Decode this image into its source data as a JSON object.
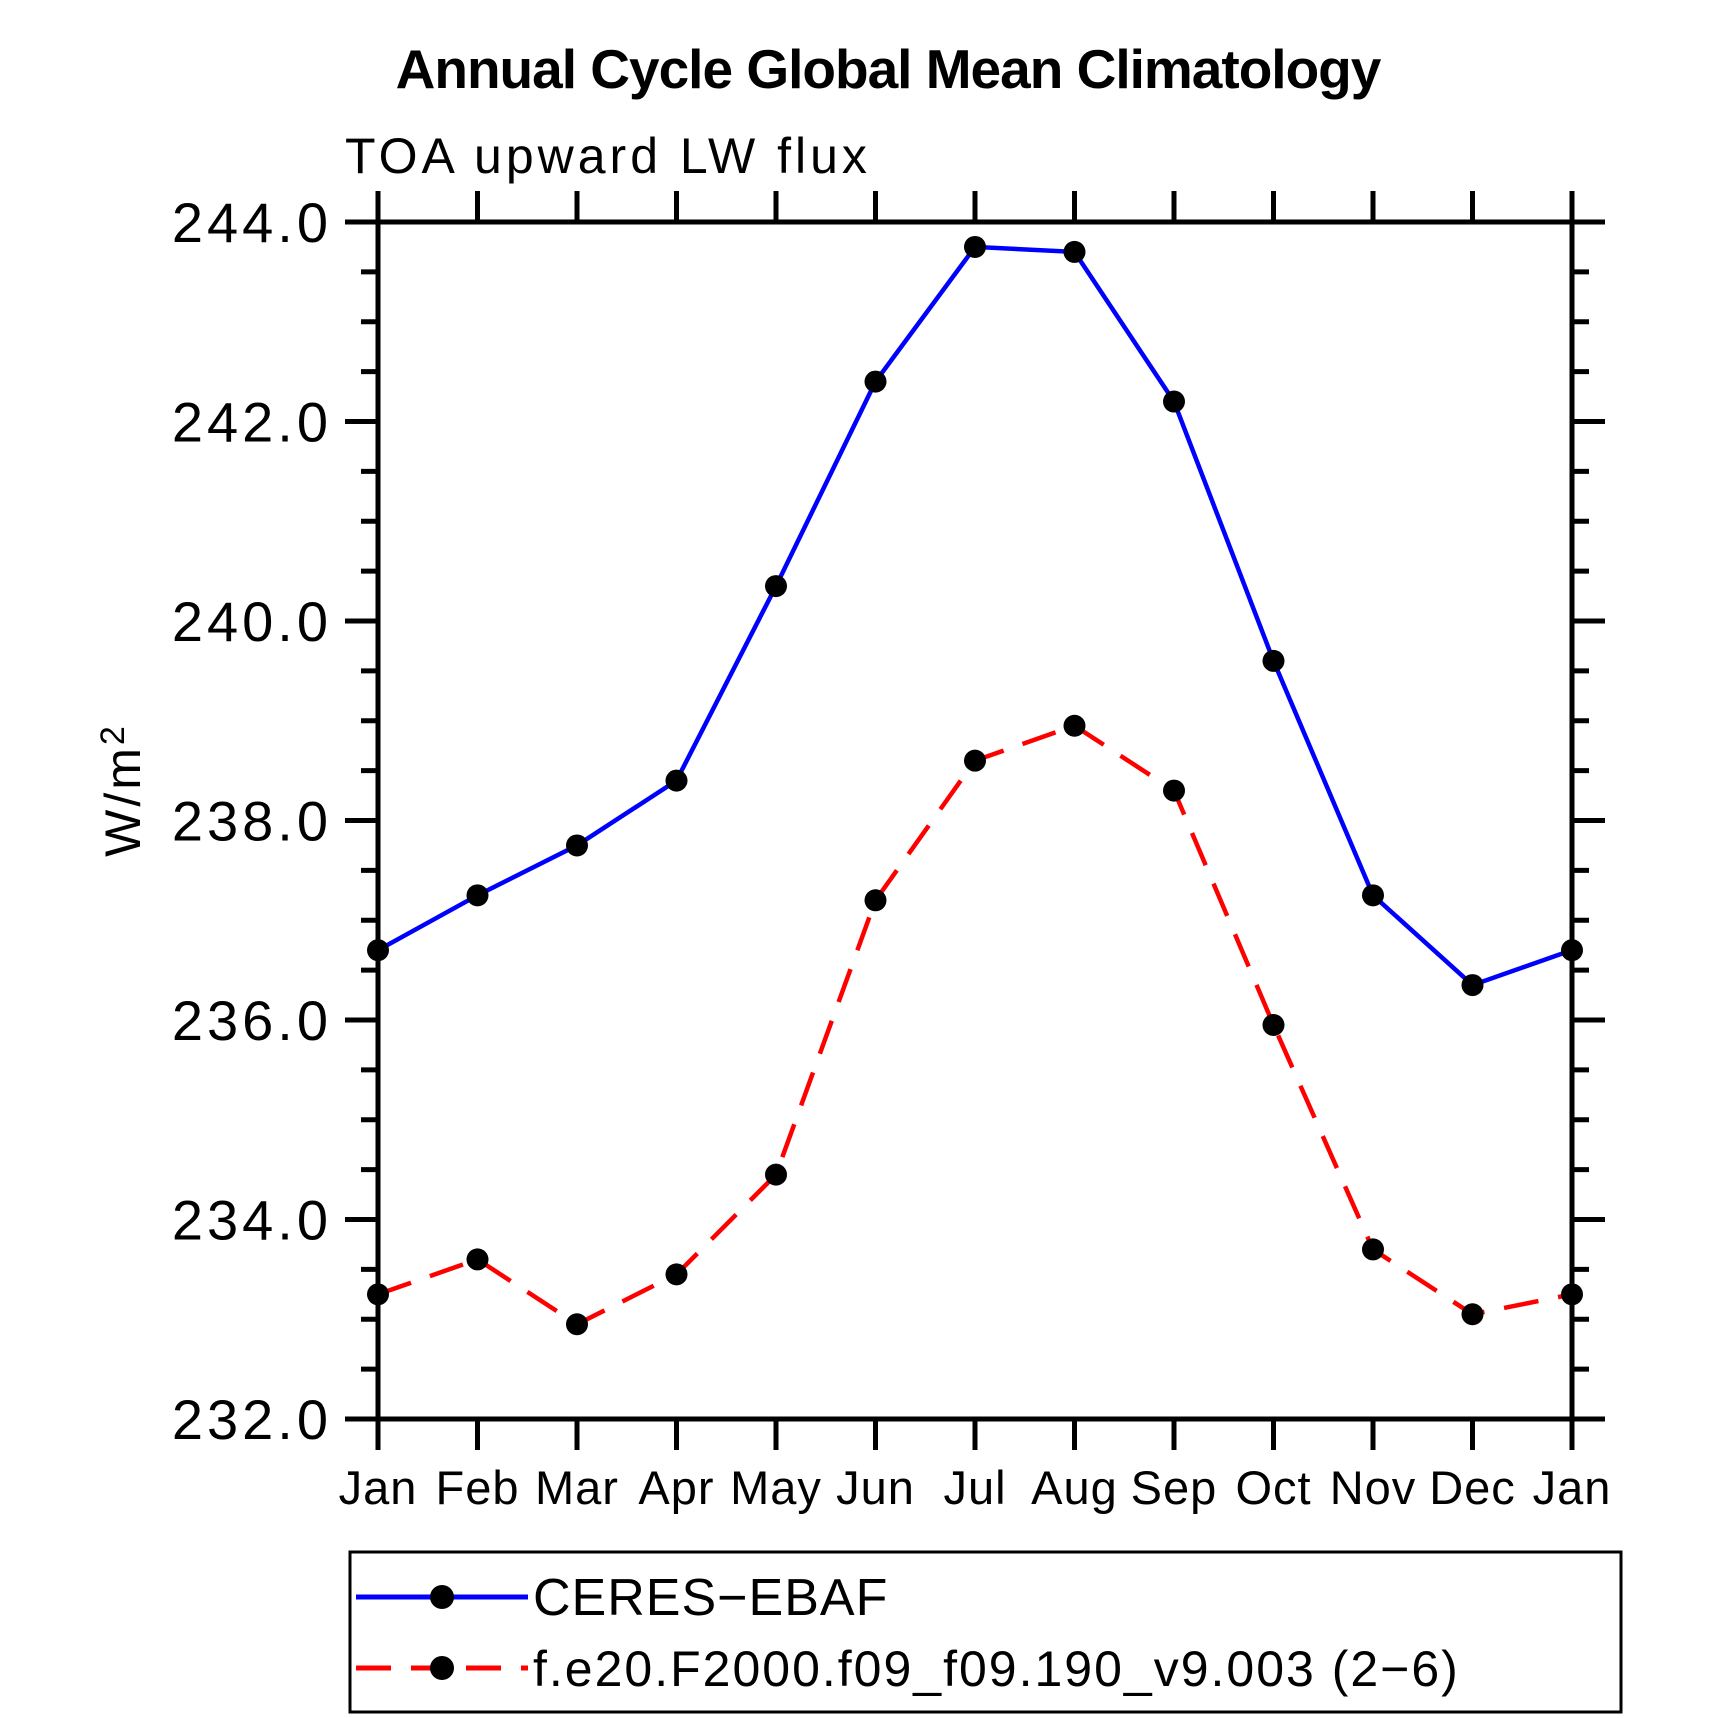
{
  "page": {
    "background": "#ffffff"
  },
  "chart_data": {
    "type": "line",
    "title": "Annual Cycle Global Mean Climatology",
    "subtitle": "TOA upward LW flux",
    "ylabel_base": "W/m",
    "ylabel_exp": "2",
    "categories": [
      "Jan",
      "Feb",
      "Mar",
      "Apr",
      "May",
      "Jun",
      "Jul",
      "Aug",
      "Sep",
      "Oct",
      "Nov",
      "Dec",
      "Jan"
    ],
    "y_axis": {
      "min": 232.0,
      "max": 244.0,
      "major_step": 2.0,
      "minor_step": 0.5,
      "major_tick_labels": [
        "244.0",
        "242.0",
        "240.0",
        "238.0",
        "236.0",
        "234.0",
        "232.0"
      ]
    },
    "grid": false,
    "legend_position": "bottom",
    "marker_color": "#000000",
    "axis_color": "#000000",
    "series": [
      {
        "name": "CERES-EBAF",
        "label": "CERES−EBAF",
        "color": "#0000ff",
        "line_style": "solid",
        "values": [
          236.7,
          237.25,
          237.75,
          238.4,
          240.35,
          242.4,
          243.75,
          243.7,
          242.2,
          239.6,
          237.25,
          236.35,
          236.7
        ]
      },
      {
        "name": "f.e20.F2000.f09_f09.190_v9.003 (2-6)",
        "label": "f.e20.F2000.f09_f09.190_v9.003 (2−6)",
        "color": "#ff0000",
        "line_style": "dashed",
        "values": [
          233.25,
          233.6,
          232.95,
          233.45,
          234.45,
          237.2,
          238.6,
          238.95,
          238.3,
          235.95,
          233.7,
          233.05,
          233.25
        ]
      }
    ]
  }
}
